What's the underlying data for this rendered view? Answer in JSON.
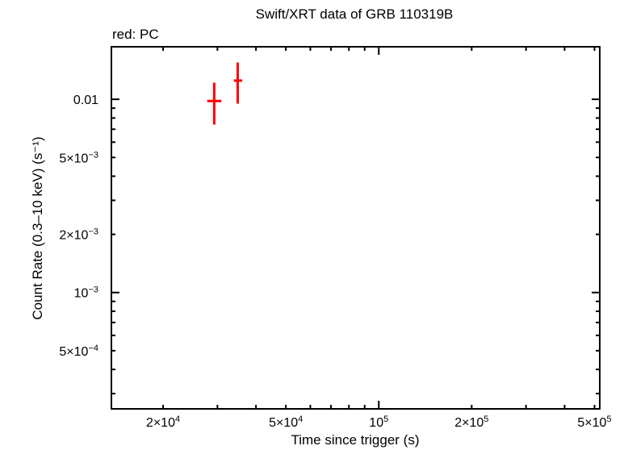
{
  "chart": {
    "title": "Swift/XRT data of GRB 110319B",
    "subtitle": "red: PC",
    "xlabel": "Time since trigger (s)",
    "ylabel": "Count Rate (0.3–10 keV) (s⁻¹)",
    "x_tick_labels": [
      {
        "mantissa": "2×10",
        "exp": "4",
        "value": 20000
      },
      {
        "mantissa": "5×10",
        "exp": "4",
        "value": 50000
      },
      {
        "mantissa": "10",
        "exp": "5",
        "value": 100000
      },
      {
        "mantissa": "2×10",
        "exp": "5",
        "value": 200000
      },
      {
        "mantissa": "5×10",
        "exp": "5",
        "value": 500000
      }
    ],
    "y_tick_labels": [
      {
        "mantissa": "0.01",
        "exp": "",
        "value": 0.01
      },
      {
        "mantissa": "5×10",
        "exp": "−3",
        "value": 0.005
      },
      {
        "mantissa": "2×10",
        "exp": "−3",
        "value": 0.002
      },
      {
        "mantissa": "10",
        "exp": "−3",
        "value": 0.001
      },
      {
        "mantissa": "5×10",
        "exp": "−4",
        "value": 0.0005
      }
    ],
    "colors": {
      "pc": "#ff0000",
      "axis": "#000000",
      "background": "#ffffff"
    }
  },
  "chart_data": {
    "type": "scatter",
    "title": "Swift/XRT data of GRB 110319B",
    "subtitle": "red: PC",
    "xlabel": "Time since trigger (s)",
    "ylabel": "Count Rate (0.3–10 keV) (s^-1)",
    "xscale": "log",
    "yscale": "log",
    "xlim": [
      13600,
      520000
    ],
    "ylim": [
      0.00025,
      0.0187
    ],
    "grid": false,
    "legend": "text annotation 'red: PC' top-left",
    "series": [
      {
        "name": "PC",
        "color": "#ff0000",
        "points": [
          {
            "x": 29300,
            "x_lo": 27800,
            "x_hi": 30900,
            "y": 0.0098,
            "y_lo": 0.0074,
            "y_hi": 0.0122
          },
          {
            "x": 34900,
            "x_lo": 33900,
            "x_hi": 36100,
            "y": 0.0125,
            "y_lo": 0.0095,
            "y_hi": 0.0155
          }
        ]
      }
    ]
  }
}
